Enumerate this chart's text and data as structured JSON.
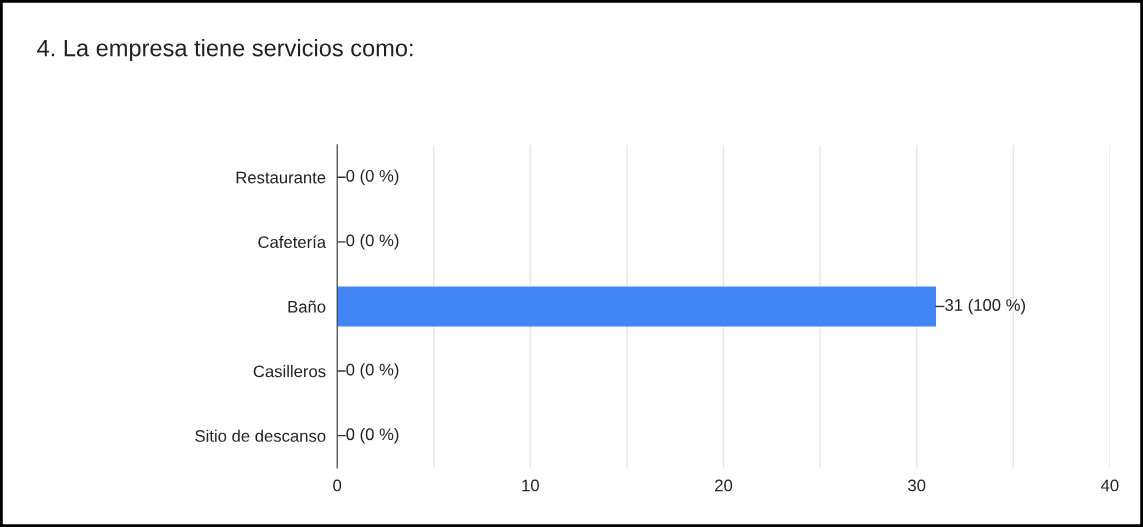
{
  "chart_data": {
    "type": "bar",
    "orientation": "horizontal",
    "title": "4. La empresa tiene servicios como:",
    "categories": [
      "Restaurante",
      "Cafetería",
      "Baño",
      "Casilleros",
      "Sitio de descanso"
    ],
    "values": [
      0,
      0,
      31,
      0,
      0
    ],
    "color": "#4285f4",
    "value_labels": [
      "0 (0 %)",
      "0 (0 %)",
      "31 (100 %)",
      "0 (0 %)",
      "0 (0 %)"
    ],
    "xlim": [
      0,
      40
    ],
    "xticks": [
      0,
      {
        "value": 5,
        "label": null
      },
      10,
      {
        "value": 15,
        "label": null
      },
      20,
      {
        "value": 25,
        "label": null
      },
      30,
      {
        "value": 35,
        "label": null
      },
      40
    ],
    "grid": "x",
    "legend": false
  }
}
